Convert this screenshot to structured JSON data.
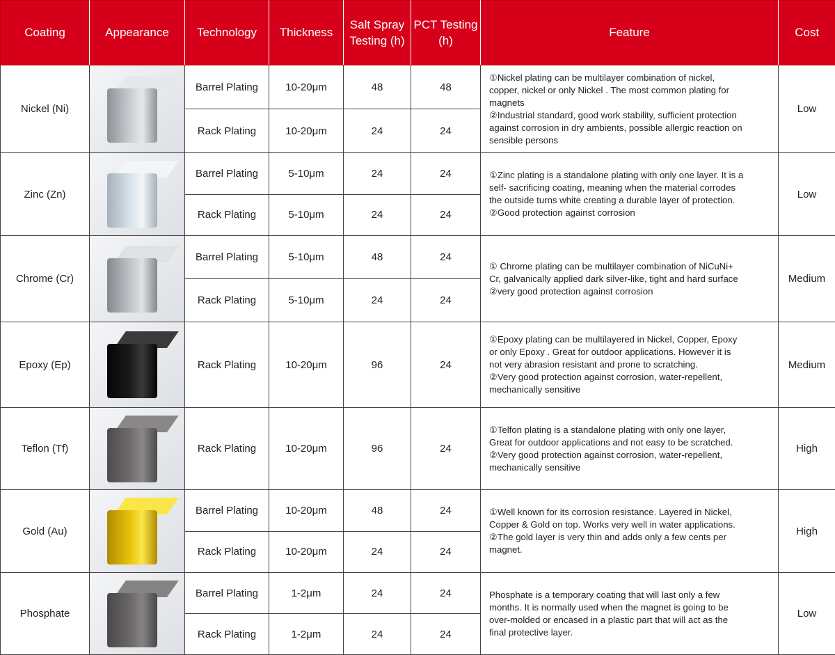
{
  "headers": [
    "Coating",
    "Appearance",
    "Technology",
    "Thickness",
    "Salt Spray Testing (h)",
    "PCT Testing (h)",
    "Feature",
    "Cost"
  ],
  "colors": {
    "header_bg": "#d7001a",
    "header_text": "#ffffff"
  },
  "rows": [
    {
      "coating": "Nickel (Ni)",
      "cube": [
        "#c9ccd0",
        "#e6e8ea",
        "#8e9196"
      ],
      "height": 126,
      "sub": [
        [
          "Barrel Plating",
          "10-20μm",
          "48",
          "48"
        ],
        [
          "Rack Plating",
          "10-20μm",
          "24",
          "24"
        ]
      ],
      "feature": [
        "①Nickel plating can be multilayer combination of nickel,",
        "copper, nickel or only Nickel . The most common plating for",
        "magnets",
        "②Industrial standard, good work stability, sufficient protection",
        "against corrosion in dry ambients, possible allergic reaction on",
        "sensible persons"
      ],
      "cost": "Low"
    },
    {
      "coating": "Zinc (Zn)",
      "cube": [
        "#d6e2ea",
        "#f2f6f8",
        "#a5b2bb"
      ],
      "height": 119,
      "sub": [
        [
          "Barrel Plating",
          "5-10μm",
          "24",
          "24"
        ],
        [
          "Rack Plating",
          "5-10μm",
          "24",
          "24"
        ]
      ],
      "feature": [
        "①Zinc plating is a standalone plating with only one layer. It is a",
        "self- sacrificing coating, meaning when the material corrodes",
        "the outside turns white creating a durable layer of protection.",
        "②Good protection against corrosion"
      ],
      "cost": "Low"
    },
    {
      "coating": "Chrome (Cr)",
      "cube": [
        "#bfc2c6",
        "#dfe1e3",
        "#85888c"
      ],
      "height": 124,
      "sub": [
        [
          "Barrel Plating",
          "5-10μm",
          "48",
          "24"
        ],
        [
          "Rack Plating",
          "5-10μm",
          "24",
          "24"
        ]
      ],
      "feature": [
        "① Chrome plating can be multilayer combination of NiCuNi+",
        "Cr, galvanically applied dark silver-like, tight and hard surface",
        "②very good protection against corrosion"
      ],
      "cost": "Medium"
    },
    {
      "coating": "Epoxy (Ep)",
      "cube": [
        "#1a1a1a",
        "#3a3a3a",
        "#050505"
      ],
      "height": 123,
      "sub": [
        [
          "Rack Plating",
          "10-20μm",
          "96",
          "24"
        ]
      ],
      "feature": [
        "①Epoxy plating can be multilayered in Nickel, Copper, Epoxy",
        "or only Epoxy . Great for outdoor applications. However it is",
        "not very abrasion resistant and prone to scratching.",
        "②Very good protection against corrosion, water-repellent,",
        "mechanically sensitive"
      ],
      "cost": "Medium"
    },
    {
      "coating": "Teflon (Tf)",
      "cube": [
        "#6e6c6b",
        "#8a8887",
        "#4e4c4b"
      ],
      "height": 118,
      "sub": [
        [
          "Rack Plating",
          "10-20μm",
          "96",
          "24"
        ]
      ],
      "feature": [
        "①Telfon plating is a standalone plating with only one layer,",
        "Great for outdoor applications and not easy to be  scratched.",
        "②Very good protection against corrosion, water-repellent,",
        "mechanically sensitive"
      ],
      "cost": "High"
    },
    {
      "coating": "Gold (Au)",
      "cube": [
        "#e8c20a",
        "#fbe64a",
        "#b08a00"
      ],
      "height": 119,
      "sub": [
        [
          "Barrel Plating",
          "10-20μm",
          "48",
          "24"
        ],
        [
          "Rack Plating",
          "10-20μm",
          "24",
          "24"
        ]
      ],
      "feature": [
        "①Well known for its corrosion resistance. Layered in Nickel,",
        "Copper & Gold on top. Works very well in water applications.",
        "②The gold layer is very thin and adds only a few cents per",
        "magnet."
      ],
      "cost": "High"
    },
    {
      "coating": "Phosphate",
      "cube": [
        "#6a6867",
        "#858382",
        "#4a4847"
      ],
      "height": 118,
      "sub": [
        [
          "Barrel Plating",
          "1-2μm",
          "24",
          "24"
        ],
        [
          "Rack Plating",
          "1-2μm",
          "24",
          "24"
        ]
      ],
      "feature": [
        "Phosphate is a temporary coating that will last only a few",
        "months. It is normally used when the magnet is going to be",
        "over-molded or encased in a plastic part that will act as the",
        "final protective layer."
      ],
      "cost": "Low"
    }
  ]
}
